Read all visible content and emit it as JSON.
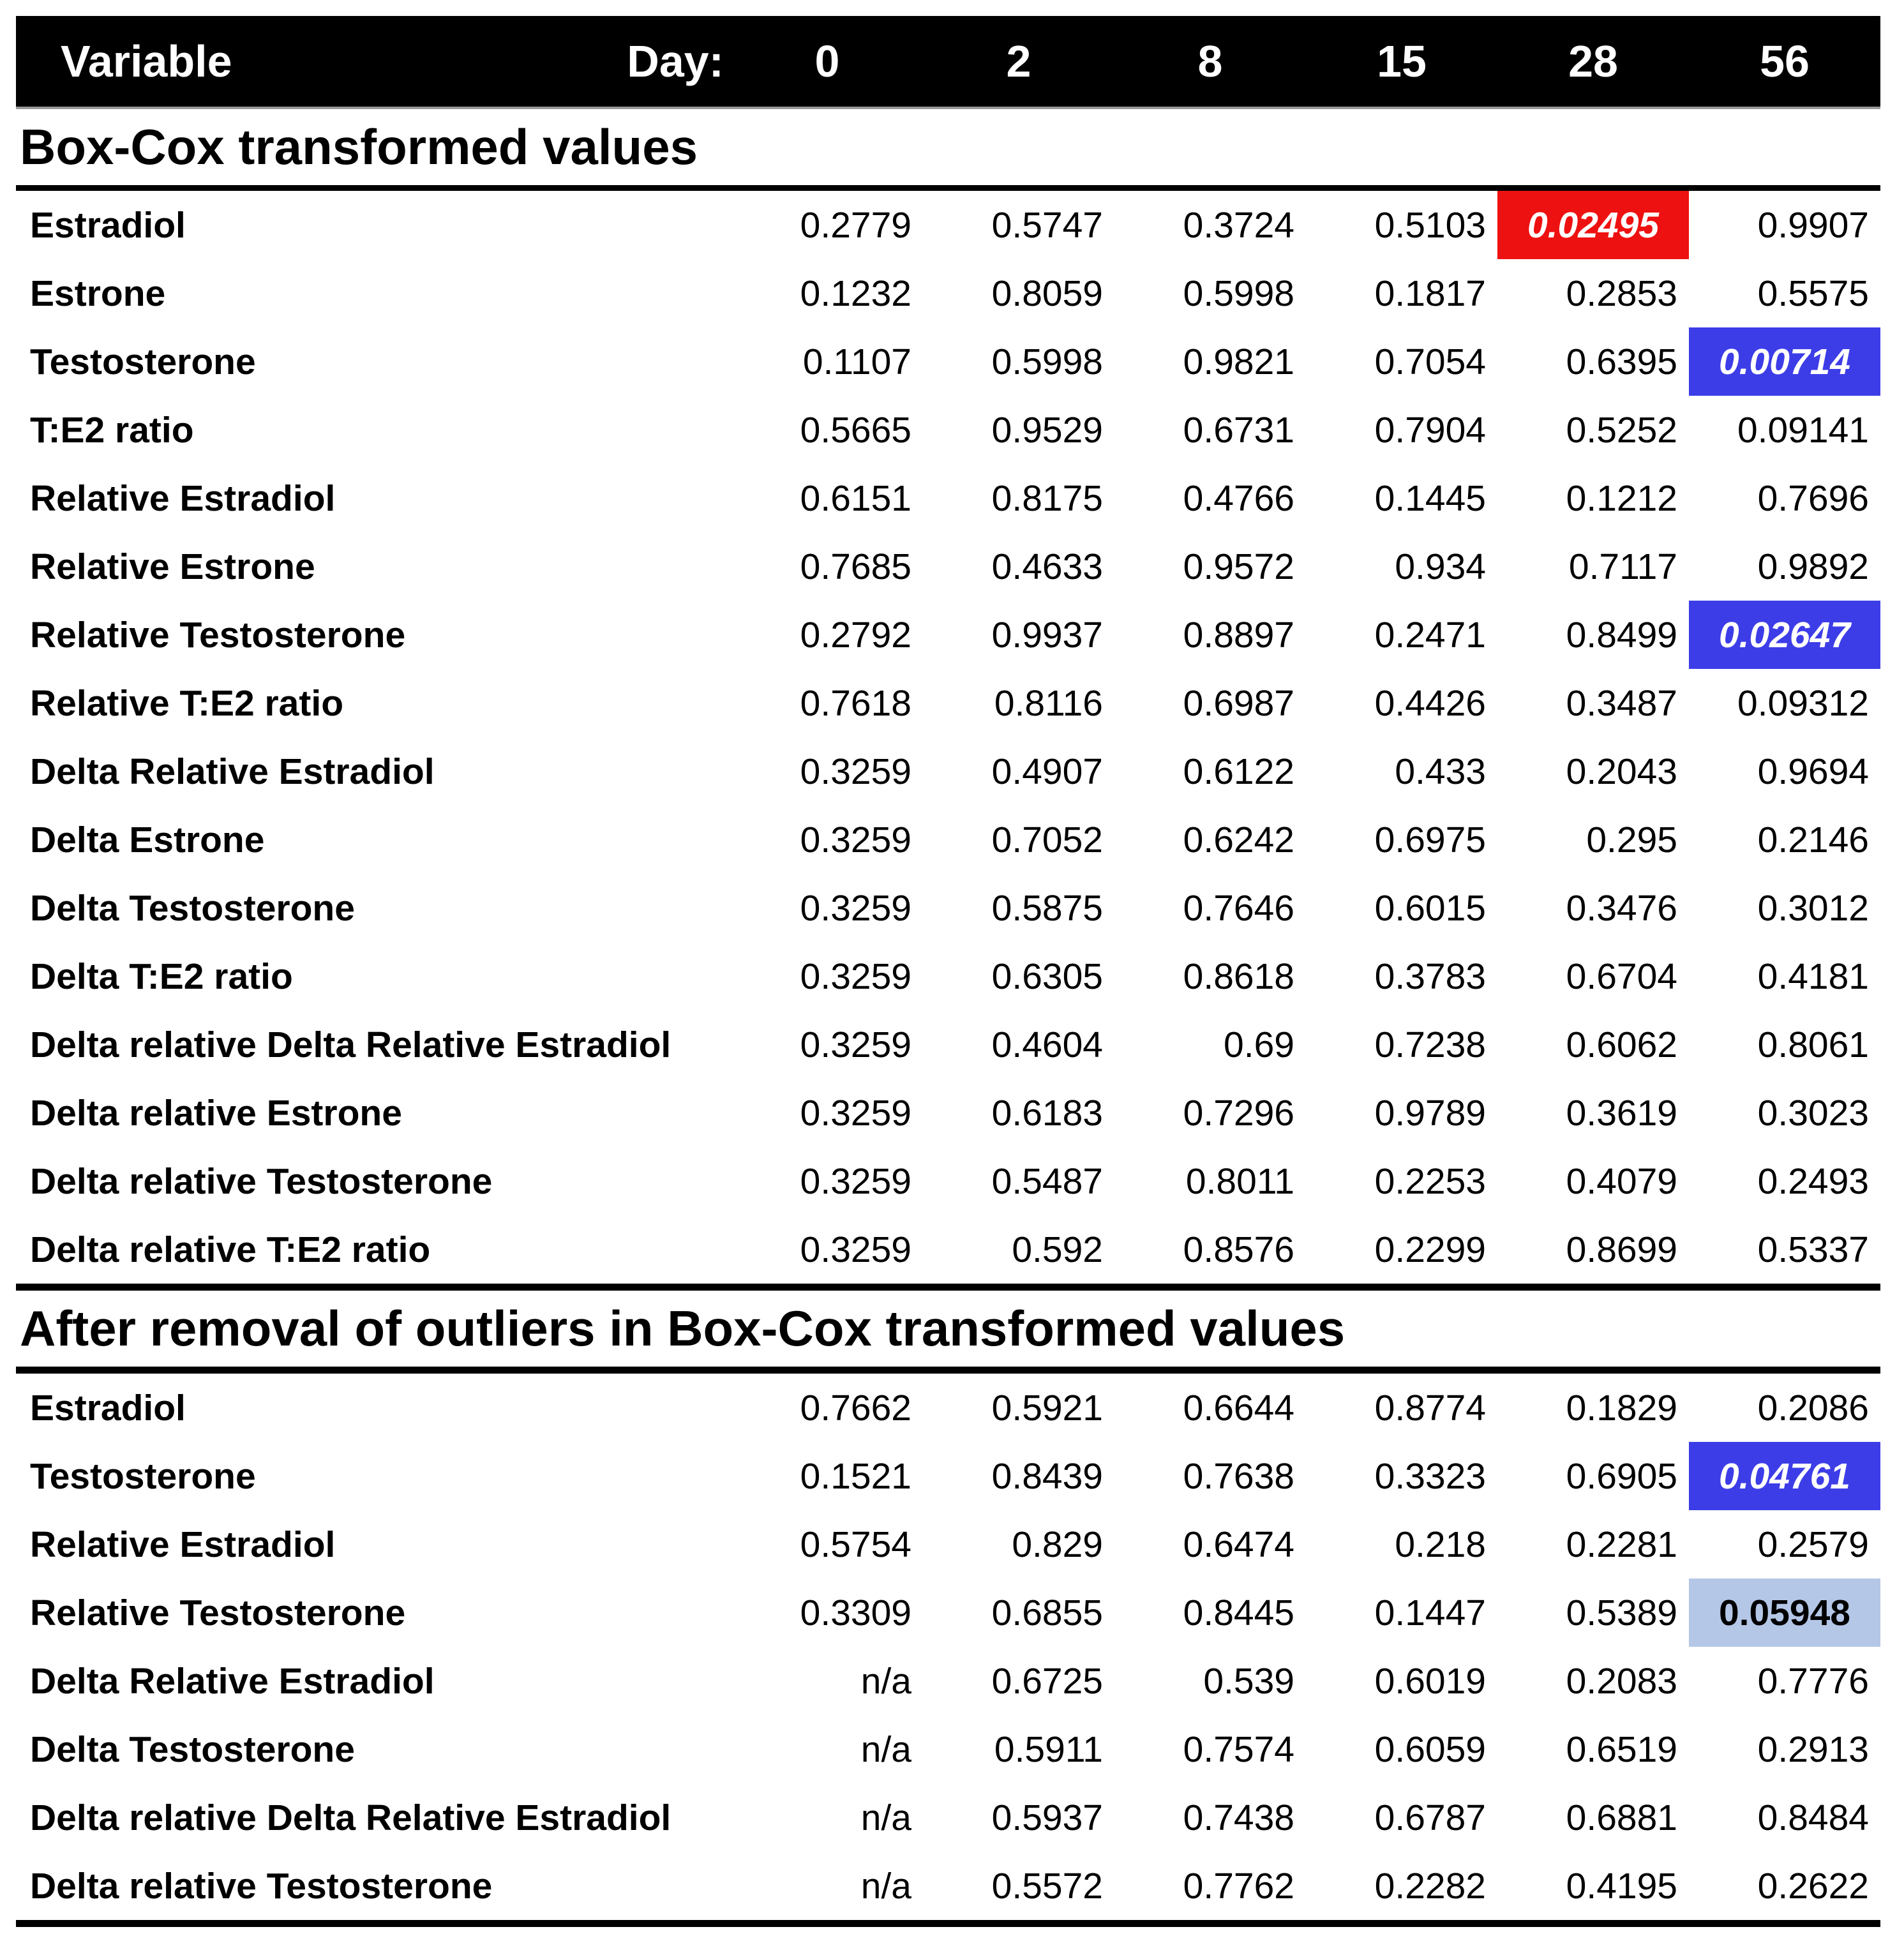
{
  "header": {
    "variable_label": "Variable",
    "day_label": "Day:",
    "days": [
      "0",
      "2",
      "8",
      "15",
      "28",
      "56"
    ]
  },
  "colors": {
    "red": "#ee1111",
    "blue": "#3d3de8",
    "lightblue": "#b4c7e7"
  },
  "sections": [
    {
      "title": "Box-Cox transformed values",
      "rows": [
        {
          "variable": "Estradiol",
          "values": [
            "0.2779",
            "0.5747",
            "0.3724",
            "0.5103",
            "0.02495",
            "0.9907"
          ],
          "marks": [
            "",
            "",
            "",
            "",
            "red",
            ""
          ]
        },
        {
          "variable": "Estrone",
          "values": [
            "0.1232",
            "0.8059",
            "0.5998",
            "0.1817",
            "0.2853",
            "0.5575"
          ],
          "marks": [
            "",
            "",
            "",
            "",
            "",
            ""
          ]
        },
        {
          "variable": "Testosterone",
          "values": [
            "0.1107",
            "0.5998",
            "0.9821",
            "0.7054",
            "0.6395",
            "0.00714"
          ],
          "marks": [
            "",
            "",
            "",
            "",
            "",
            "blue"
          ]
        },
        {
          "variable": "T:E2 ratio",
          "values": [
            "0.5665",
            "0.9529",
            "0.6731",
            "0.7904",
            "0.5252",
            "0.09141"
          ],
          "marks": [
            "",
            "",
            "",
            "",
            "",
            ""
          ]
        },
        {
          "variable": "Relative Estradiol",
          "values": [
            "0.6151",
            "0.8175",
            "0.4766",
            "0.1445",
            "0.1212",
            "0.7696"
          ],
          "marks": [
            "",
            "",
            "",
            "",
            "",
            ""
          ]
        },
        {
          "variable": "Relative Estrone",
          "values": [
            "0.7685",
            "0.4633",
            "0.9572",
            "0.934",
            "0.7117",
            "0.9892"
          ],
          "marks": [
            "",
            "",
            "",
            "",
            "",
            ""
          ]
        },
        {
          "variable": "Relative Testosterone",
          "values": [
            "0.2792",
            "0.9937",
            "0.8897",
            "0.2471",
            "0.8499",
            "0.02647"
          ],
          "marks": [
            "",
            "",
            "",
            "",
            "",
            "blue"
          ]
        },
        {
          "variable": "Relative T:E2 ratio",
          "values": [
            "0.7618",
            "0.8116",
            "0.6987",
            "0.4426",
            "0.3487",
            "0.09312"
          ],
          "marks": [
            "",
            "",
            "",
            "",
            "",
            ""
          ]
        },
        {
          "variable": "Delta Relative Estradiol",
          "values": [
            "0.3259",
            "0.4907",
            "0.6122",
            "0.433",
            "0.2043",
            "0.9694"
          ],
          "marks": [
            "",
            "",
            "",
            "",
            "",
            ""
          ]
        },
        {
          "variable": "Delta Estrone",
          "values": [
            "0.3259",
            "0.7052",
            "0.6242",
            "0.6975",
            "0.295",
            "0.2146"
          ],
          "marks": [
            "",
            "",
            "",
            "",
            "",
            ""
          ]
        },
        {
          "variable": "Delta Testosterone",
          "values": [
            "0.3259",
            "0.5875",
            "0.7646",
            "0.6015",
            "0.3476",
            "0.3012"
          ],
          "marks": [
            "",
            "",
            "",
            "",
            "",
            ""
          ]
        },
        {
          "variable": "Delta T:E2 ratio",
          "values": [
            "0.3259",
            "0.6305",
            "0.8618",
            "0.3783",
            "0.6704",
            "0.4181"
          ],
          "marks": [
            "",
            "",
            "",
            "",
            "",
            ""
          ]
        },
        {
          "variable": "Delta relative Delta Relative Estradiol",
          "values": [
            "0.3259",
            "0.4604",
            "0.69",
            "0.7238",
            "0.6062",
            "0.8061"
          ],
          "marks": [
            "",
            "",
            "",
            "",
            "",
            ""
          ]
        },
        {
          "variable": "Delta relative Estrone",
          "values": [
            "0.3259",
            "0.6183",
            "0.7296",
            "0.9789",
            "0.3619",
            "0.3023"
          ],
          "marks": [
            "",
            "",
            "",
            "",
            "",
            ""
          ]
        },
        {
          "variable": "Delta relative Testosterone",
          "values": [
            "0.3259",
            "0.5487",
            "0.8011",
            "0.2253",
            "0.4079",
            "0.2493"
          ],
          "marks": [
            "",
            "",
            "",
            "",
            "",
            ""
          ]
        },
        {
          "variable": "Delta relative T:E2 ratio",
          "values": [
            "0.3259",
            "0.592",
            "0.8576",
            "0.2299",
            "0.8699",
            "0.5337"
          ],
          "marks": [
            "",
            "",
            "",
            "",
            "",
            ""
          ]
        }
      ]
    },
    {
      "title": "After removal of outliers in Box-Cox transformed values",
      "rows": [
        {
          "variable": "Estradiol",
          "values": [
            "0.7662",
            "0.5921",
            "0.6644",
            "0.8774",
            "0.1829",
            "0.2086"
          ],
          "marks": [
            "",
            "",
            "",
            "",
            "",
            ""
          ]
        },
        {
          "variable": "Testosterone",
          "values": [
            "0.1521",
            "0.8439",
            "0.7638",
            "0.3323",
            "0.6905",
            "0.04761"
          ],
          "marks": [
            "",
            "",
            "",
            "",
            "",
            "blue"
          ]
        },
        {
          "variable": "Relative Estradiol",
          "values": [
            "0.5754",
            "0.829",
            "0.6474",
            "0.218",
            "0.2281",
            "0.2579"
          ],
          "marks": [
            "",
            "",
            "",
            "",
            "",
            ""
          ]
        },
        {
          "variable": "Relative Testosterone",
          "values": [
            "0.3309",
            "0.6855",
            "0.8445",
            "0.1447",
            "0.5389",
            "0.05948"
          ],
          "marks": [
            "",
            "",
            "",
            "",
            "",
            "lightblue"
          ]
        },
        {
          "variable": "Delta Relative Estradiol",
          "values": [
            "n/a",
            "0.6725",
            "0.539",
            "0.6019",
            "0.2083",
            "0.7776"
          ],
          "marks": [
            "",
            "",
            "",
            "",
            "",
            ""
          ]
        },
        {
          "variable": "Delta Testosterone",
          "values": [
            "n/a",
            "0.5911",
            "0.7574",
            "0.6059",
            "0.6519",
            "0.2913"
          ],
          "marks": [
            "",
            "",
            "",
            "",
            "",
            ""
          ]
        },
        {
          "variable": "Delta relative Delta Relative Estradiol",
          "values": [
            "n/a",
            "0.5937",
            "0.7438",
            "0.6787",
            "0.6881",
            "0.8484"
          ],
          "marks": [
            "",
            "",
            "",
            "",
            "",
            ""
          ]
        },
        {
          "variable": "Delta relative Testosterone",
          "values": [
            "n/a",
            "0.5572",
            "0.7762",
            "0.2282",
            "0.4195",
            "0.2622"
          ],
          "marks": [
            "",
            "",
            "",
            "",
            "",
            ""
          ]
        }
      ]
    }
  ]
}
